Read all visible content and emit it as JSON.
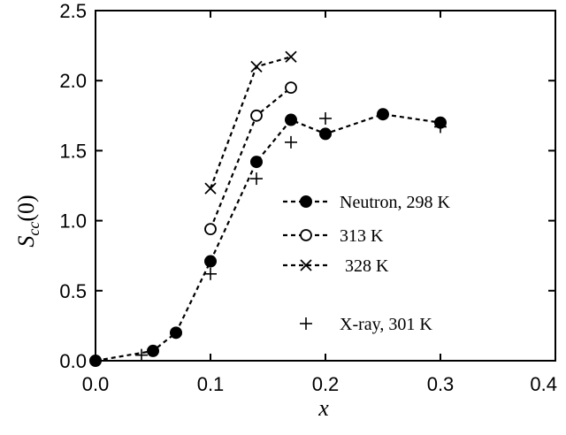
{
  "chart_data": {
    "type": "scatter",
    "xlabel": "x",
    "ylabel_main": "S",
    "ylabel_sub": "cc",
    "ylabel_tail": "(0)",
    "xlim": [
      0.0,
      0.4
    ],
    "ylim": [
      0.0,
      2.5
    ],
    "xticks": [
      "0.0",
      "0.1",
      "0.2",
      "0.3",
      "0.4"
    ],
    "yticks": [
      "0.0",
      "0.5",
      "1.0",
      "1.5",
      "2.0",
      "2.5"
    ],
    "grid": false,
    "legend_position": "center-right",
    "series": [
      {
        "name": "Neutron, 298 K",
        "marker": "filled-circle",
        "line": "dashed",
        "points": [
          [
            0.0,
            0.0
          ],
          [
            0.05,
            0.07
          ],
          [
            0.07,
            0.2
          ],
          [
            0.1,
            0.71
          ],
          [
            0.14,
            1.42
          ],
          [
            0.17,
            1.72
          ],
          [
            0.2,
            1.62
          ],
          [
            0.25,
            1.76
          ],
          [
            0.3,
            1.7
          ]
        ]
      },
      {
        "name": "313 K",
        "marker": "open-circle",
        "line": "dashed",
        "points": [
          [
            0.1,
            0.94
          ],
          [
            0.14,
            1.75
          ],
          [
            0.17,
            1.95
          ]
        ]
      },
      {
        "name": "328 K",
        "marker": "cross",
        "line": "dashed",
        "points": [
          [
            0.1,
            1.23
          ],
          [
            0.14,
            2.1
          ],
          [
            0.17,
            2.17
          ]
        ]
      },
      {
        "name": "X-ray, 301 K",
        "marker": "plus",
        "line": "none",
        "points": [
          [
            0.04,
            0.04
          ],
          [
            0.1,
            0.62
          ],
          [
            0.14,
            1.3
          ],
          [
            0.17,
            1.56
          ],
          [
            0.2,
            1.73
          ],
          [
            0.3,
            1.67
          ]
        ]
      }
    ]
  }
}
